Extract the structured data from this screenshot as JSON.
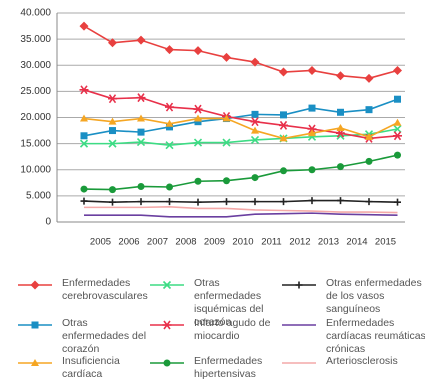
{
  "chart_data": {
    "type": "line",
    "categories": [
      null,
      "2005",
      "2006",
      "2007",
      "2008",
      "2009",
      "2010",
      "2011",
      "2012",
      "2013",
      "2014",
      "2015"
    ],
    "ylim": [
      0,
      40000
    ],
    "yticks": [
      {
        "value": 0,
        "label": "0"
      },
      {
        "value": 5000,
        "label": "5.000"
      },
      {
        "value": 10000,
        "label": "10.000"
      },
      {
        "value": 15000,
        "label": "15.000"
      },
      {
        "value": 20000,
        "label": "20.000"
      },
      {
        "value": 25000,
        "label": "25.000"
      },
      {
        "value": 30000,
        "label": "30.000"
      },
      {
        "value": 35000,
        "label": "35.000"
      },
      {
        "value": 40000,
        "label": "40.000"
      }
    ],
    "grid": true,
    "series": [
      {
        "name": "Enfermedades cerebrovasculares",
        "color": "#e8403f",
        "marker": "diamond",
        "values": [
          37500,
          34300,
          34800,
          33000,
          32800,
          31500,
          30600,
          28700,
          29000,
          28000,
          27500,
          29000
        ]
      },
      {
        "name": "Otras enfermedades isquémicas del corazón",
        "color": "#3ddc84",
        "marker": "x",
        "values": [
          15000,
          15000,
          15300,
          14700,
          15200,
          15200,
          15700,
          16000,
          16300,
          16500,
          16800,
          17800
        ]
      },
      {
        "name": "Otras enfermedades de los vasos sanguíneos",
        "color": "#222222",
        "marker": "plus",
        "values": [
          4000,
          3800,
          3900,
          3900,
          3800,
          3900,
          3900,
          3900,
          4100,
          4100,
          3900,
          3800
        ]
      },
      {
        "name": "Otras enfermedades del corazón",
        "color": "#1a8fc4",
        "marker": "square",
        "values": [
          16500,
          17500,
          17200,
          18200,
          19200,
          19800,
          20600,
          20500,
          21800,
          21000,
          21500,
          23500
        ]
      },
      {
        "name": "Infarto agudo de miocardio",
        "color": "#e8304a",
        "marker": "star",
        "values": [
          25300,
          23600,
          23800,
          22000,
          21600,
          20200,
          19200,
          18500,
          17800,
          17000,
          16000,
          16500
        ]
      },
      {
        "name": "Enfermedades cardíacas reumáticas crónicas",
        "color": "#6a3fa0",
        "marker": "none",
        "values": [
          1300,
          1300,
          1300,
          1000,
          1000,
          1000,
          1500,
          1600,
          1700,
          1500,
          1400,
          1300
        ]
      },
      {
        "name": "Insuficiencia cardíaca",
        "color": "#f5a623",
        "marker": "triangle",
        "values": [
          19800,
          19200,
          19800,
          18800,
          19800,
          19800,
          17500,
          16000,
          17000,
          18000,
          16300,
          19000
        ]
      },
      {
        "name": "Enfermedades hipertensivas",
        "color": "#1a9a3a",
        "marker": "circle",
        "values": [
          6300,
          6200,
          6800,
          6700,
          7800,
          7900,
          8500,
          9800,
          10000,
          10600,
          11600,
          12800
        ]
      },
      {
        "name": "Arteriosclerosis",
        "color": "#f4a9a8",
        "marker": "none",
        "values": [
          2800,
          2800,
          2800,
          2900,
          2600,
          2600,
          2300,
          2200,
          2100,
          1900,
          1900,
          1800
        ]
      }
    ]
  }
}
